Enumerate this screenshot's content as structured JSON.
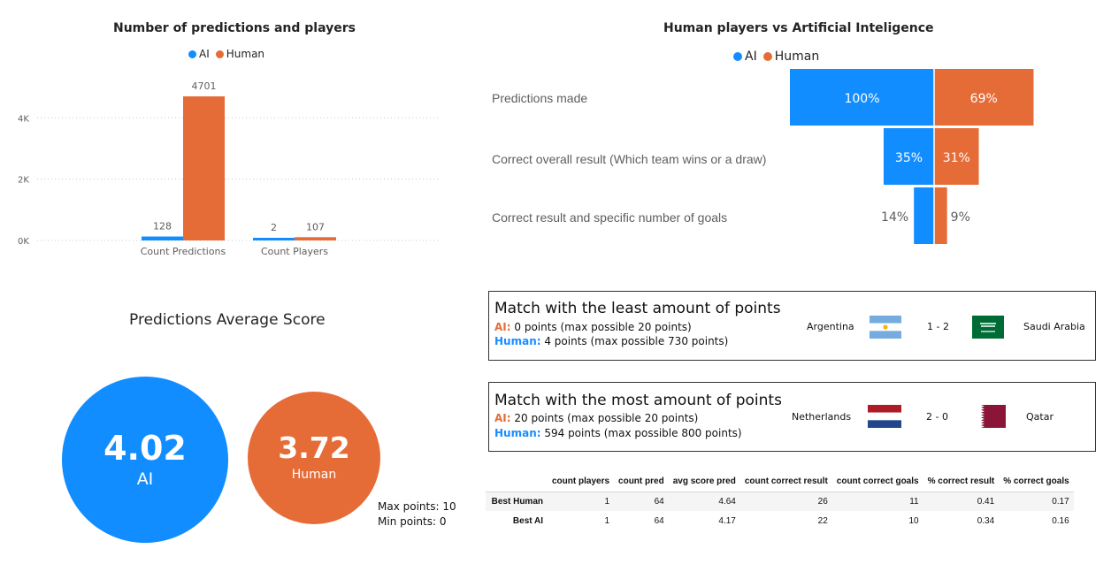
{
  "colors": {
    "ai": "#118dff",
    "human": "#e66c37"
  },
  "top_left": {
    "title": "Number of predictions and players",
    "legend": [
      {
        "name": "AI",
        "color": "#118dff"
      },
      {
        "name": "Human",
        "color": "#e66c37"
      }
    ]
  },
  "top_right": {
    "title": "Human players vs Artificial Inteligence",
    "legend": [
      {
        "name": "AI",
        "color": "#118dff"
      },
      {
        "name": "Human",
        "color": "#e66c37"
      }
    ],
    "rows": [
      {
        "label": "Predictions made",
        "ai_pct": 100,
        "human_pct": 69,
        "ai_text": "100%",
        "human_text": "69%"
      },
      {
        "label": "Correct overall result (Which team wins or a draw)",
        "ai_pct": 35,
        "human_pct": 31,
        "ai_text": "35%",
        "human_text": "31%"
      },
      {
        "label": "Correct result and specific number of goals",
        "ai_pct": 14,
        "human_pct": 9,
        "ai_text": "14%",
        "human_text": "9%"
      }
    ]
  },
  "chart_data": {
    "type": "bar",
    "title": "Number of predictions and players",
    "categories": [
      "Count Predictions",
      "Count Players"
    ],
    "series": [
      {
        "name": "AI",
        "values": [
          128,
          2
        ]
      },
      {
        "name": "Human",
        "values": [
          4701,
          107
        ]
      }
    ],
    "ylim": [
      0,
      4701
    ],
    "yticks": [
      0,
      2000,
      4000
    ],
    "ytick_labels": [
      "0K",
      "2K",
      "4K"
    ],
    "grid": true,
    "legend": "top-center"
  },
  "avg_score": {
    "title": "Predictions Average Score",
    "ai_value": "4.02",
    "ai_label": "AI",
    "human_value": "3.72",
    "human_label": "Human",
    "max_points": "Max points: 10",
    "min_points": "Min points: 0"
  },
  "least_match": {
    "title": "Match with the least amount of points",
    "ai_tag": "AI:",
    "ai_text": " 0 points (max possible 20 points)",
    "human_tag": "Human:",
    "human_text": " 4 points (max possible 730 points)",
    "team1": "Argentina",
    "score": "1 - 2",
    "team2": "Saudi Arabia"
  },
  "most_match": {
    "title": "Match with the most amount of points",
    "ai_tag": "AI:",
    "ai_text": " 20 points (max possible 20 points)",
    "human_tag": "Human:",
    "human_text": " 594 points (max possible 800 points)",
    "team1": "Netherlands",
    "score": "2 - 0",
    "team2": "Qatar"
  },
  "table": {
    "headers": [
      "",
      "count players",
      "count pred",
      "avg score pred",
      "count correct result",
      "count correct goals",
      "% correct result",
      "% correct goals"
    ],
    "rows": [
      [
        "Best Human",
        "1",
        "64",
        "4.64",
        "26",
        "11",
        "0.41",
        "0.17"
      ],
      [
        "Best AI",
        "1",
        "64",
        "4.17",
        "22",
        "10",
        "0.34",
        "0.16"
      ]
    ]
  }
}
